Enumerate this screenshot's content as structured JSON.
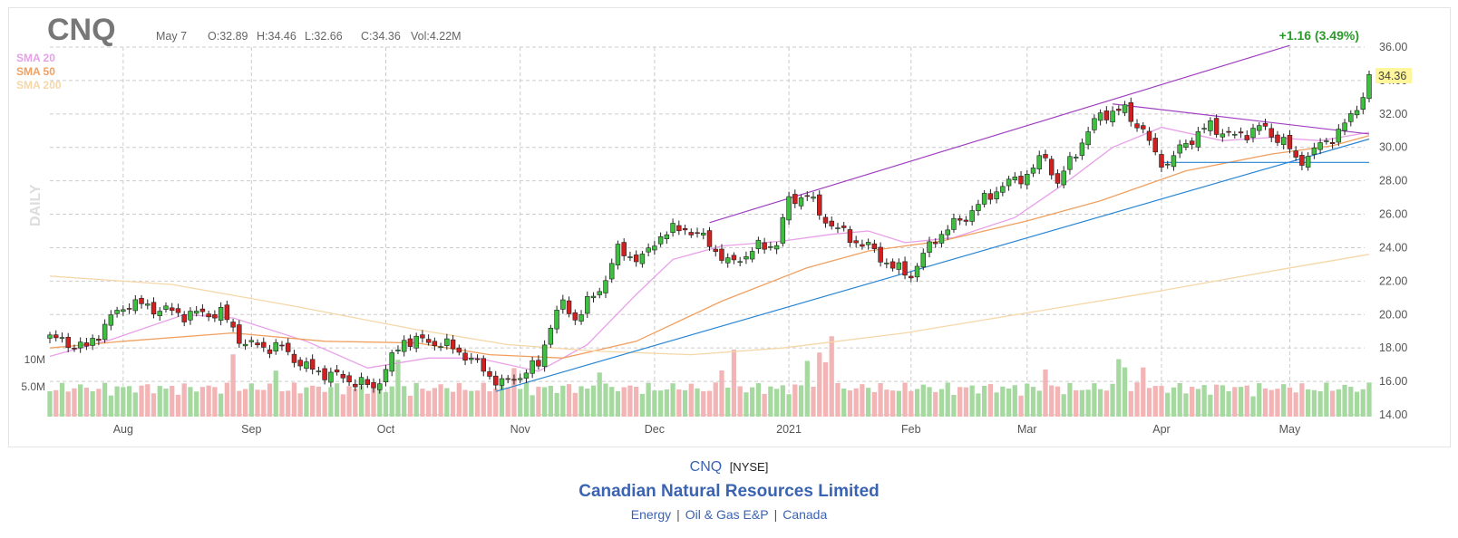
{
  "header": {
    "ticker": "CNQ",
    "date": "May 7",
    "open": "O:32.89",
    "high": "H:34.46",
    "low": "L:32.66",
    "close": "C:34.36",
    "volume": "Vol:4.22M",
    "change": "+1.16 (3.49%)",
    "last_price": "34.36",
    "period_label": "DAILY"
  },
  "legend": [
    {
      "label": "SMA 20",
      "color": "#e8a0e8"
    },
    {
      "label": "SMA 50",
      "color": "#f0a060"
    },
    {
      "label": "SMA 200",
      "color": "#f5d7a8"
    }
  ],
  "colors": {
    "up": "#3fbf3f",
    "down": "#d02020",
    "vol_up": "#a6d9a0",
    "vol_down": "#f2b4b4",
    "trend_purple": "#a040c0",
    "trend_blue": "#2a86d4",
    "grid": "#cccccc"
  },
  "footer": {
    "symbol": "CNQ",
    "exchange": "[NYSE]",
    "company": "Canadian Natural Resources Limited",
    "sector": "Energy",
    "industry": "Oil & Gas E&P",
    "country": "Canada"
  },
  "chart_data": {
    "type": "candlestick",
    "title": "CNQ",
    "ylim": [
      14,
      36
    ],
    "y_ticks": [
      "36.00",
      "34.00",
      "32.00",
      "30.00",
      "28.00",
      "26.00",
      "24.00",
      "22.00",
      "20.00",
      "18.00",
      "16.00",
      "14.00"
    ],
    "x_ticks": [
      "Aug",
      "Sep",
      "Oct",
      "Nov",
      "Dec",
      "2021",
      "Feb",
      "Mar",
      "Apr",
      "May"
    ],
    "volume_ticks": [
      "10M",
      "5.0M"
    ],
    "anchors": [
      {
        "t": 0,
        "v": 18.6
      },
      {
        "t": 6,
        "v": 18.0
      },
      {
        "t": 10,
        "v": 19.8
      },
      {
        "t": 13,
        "v": 20.7
      },
      {
        "t": 22,
        "v": 20.0
      },
      {
        "t": 28,
        "v": 20.1
      },
      {
        "t": 32,
        "v": 18.2
      },
      {
        "t": 38,
        "v": 18.0
      },
      {
        "t": 42,
        "v": 16.8
      },
      {
        "t": 50,
        "v": 16.0
      },
      {
        "t": 53,
        "v": 15.6
      },
      {
        "t": 58,
        "v": 18.5
      },
      {
        "t": 64,
        "v": 18.3
      },
      {
        "t": 68,
        "v": 17.6
      },
      {
        "t": 72,
        "v": 16.4
      },
      {
        "t": 74,
        "v": 15.8
      },
      {
        "t": 80,
        "v": 17.0
      },
      {
        "t": 82,
        "v": 19.5
      },
      {
        "t": 84,
        "v": 20.6
      },
      {
        "t": 86,
        "v": 19.8
      },
      {
        "t": 90,
        "v": 21.5
      },
      {
        "t": 93,
        "v": 23.8
      },
      {
        "t": 97,
        "v": 23.3
      },
      {
        "t": 100,
        "v": 24.8
      },
      {
        "t": 104,
        "v": 25.2
      },
      {
        "t": 108,
        "v": 24.3
      },
      {
        "t": 111,
        "v": 23.0
      },
      {
        "t": 116,
        "v": 24.0
      },
      {
        "t": 119,
        "v": 24.3
      },
      {
        "t": 121,
        "v": 26.8
      },
      {
        "t": 124,
        "v": 27.2
      },
      {
        "t": 126,
        "v": 26.0
      },
      {
        "t": 130,
        "v": 24.8
      },
      {
        "t": 135,
        "v": 23.8
      },
      {
        "t": 138,
        "v": 22.8
      },
      {
        "t": 141,
        "v": 22.4
      },
      {
        "t": 145,
        "v": 24.6
      },
      {
        "t": 150,
        "v": 25.9
      },
      {
        "t": 155,
        "v": 27.5
      },
      {
        "t": 160,
        "v": 28.4
      },
      {
        "t": 163,
        "v": 29.5
      },
      {
        "t": 165,
        "v": 27.8
      },
      {
        "t": 168,
        "v": 29.8
      },
      {
        "t": 172,
        "v": 32.0
      },
      {
        "t": 176,
        "v": 32.2
      },
      {
        "t": 179,
        "v": 31.0
      },
      {
        "t": 181,
        "v": 29.5
      },
      {
        "t": 183,
        "v": 29.0
      },
      {
        "t": 186,
        "v": 30.3
      },
      {
        "t": 190,
        "v": 31.3
      },
      {
        "t": 194,
        "v": 30.6
      },
      {
        "t": 198,
        "v": 31.2
      },
      {
        "t": 202,
        "v": 30.4
      },
      {
        "t": 204,
        "v": 29.2
      },
      {
        "t": 206,
        "v": 29.5
      },
      {
        "t": 209,
        "v": 30.4
      },
      {
        "t": 211,
        "v": 30.9
      },
      {
        "t": 213,
        "v": 31.8
      },
      {
        "t": 215,
        "v": 33.2
      },
      {
        "t": 216,
        "v": 34.36
      }
    ],
    "sma20": [
      [
        0,
        17.5
      ],
      [
        10,
        18.5
      ],
      [
        22,
        20.0
      ],
      [
        30,
        19.8
      ],
      [
        42,
        18.4
      ],
      [
        52,
        16.8
      ],
      [
        62,
        17.4
      ],
      [
        70,
        17.4
      ],
      [
        80,
        16.6
      ],
      [
        88,
        18.2
      ],
      [
        96,
        21.2
      ],
      [
        102,
        23.3
      ],
      [
        110,
        24.1
      ],
      [
        120,
        24.4
      ],
      [
        128,
        24.8
      ],
      [
        134,
        25.0
      ],
      [
        140,
        24.3
      ],
      [
        148,
        24.6
      ],
      [
        158,
        25.8
      ],
      [
        166,
        27.8
      ],
      [
        174,
        30.0
      ],
      [
        182,
        31.2
      ],
      [
        192,
        30.4
      ],
      [
        200,
        30.6
      ],
      [
        208,
        30.4
      ],
      [
        216,
        30.9
      ]
    ],
    "sma50": [
      [
        0,
        18.0
      ],
      [
        12,
        18.4
      ],
      [
        30,
        18.9
      ],
      [
        45,
        18.4
      ],
      [
        60,
        18.3
      ],
      [
        72,
        17.6
      ],
      [
        84,
        17.4
      ],
      [
        96,
        18.4
      ],
      [
        110,
        20.8
      ],
      [
        124,
        22.8
      ],
      [
        134,
        23.8
      ],
      [
        146,
        24.4
      ],
      [
        160,
        25.6
      ],
      [
        172,
        26.8
      ],
      [
        186,
        28.6
      ],
      [
        200,
        29.6
      ],
      [
        210,
        30.1
      ],
      [
        216,
        30.7
      ]
    ],
    "sma200": [
      [
        0,
        22.3
      ],
      [
        20,
        21.8
      ],
      [
        40,
        20.5
      ],
      [
        60,
        19.1
      ],
      [
        75,
        18.2
      ],
      [
        90,
        17.8
      ],
      [
        105,
        17.6
      ],
      [
        120,
        18.0
      ],
      [
        140,
        18.9
      ],
      [
        160,
        20.1
      ],
      [
        180,
        21.3
      ],
      [
        200,
        22.6
      ],
      [
        216,
        23.6
      ]
    ],
    "trendlines": [
      {
        "color": "purple",
        "points": [
          [
            108,
            25.5
          ],
          [
            203,
            36.1
          ]
        ]
      },
      {
        "color": "purple",
        "points": [
          [
            174,
            32.6
          ],
          [
            216,
            30.8
          ]
        ]
      },
      {
        "color": "blue",
        "points": [
          [
            73,
            15.4
          ],
          [
            216,
            30.5
          ]
        ]
      },
      {
        "color": "blue",
        "points": [
          [
            182,
            29.1
          ],
          [
            216,
            29.1
          ]
        ]
      }
    ]
  }
}
